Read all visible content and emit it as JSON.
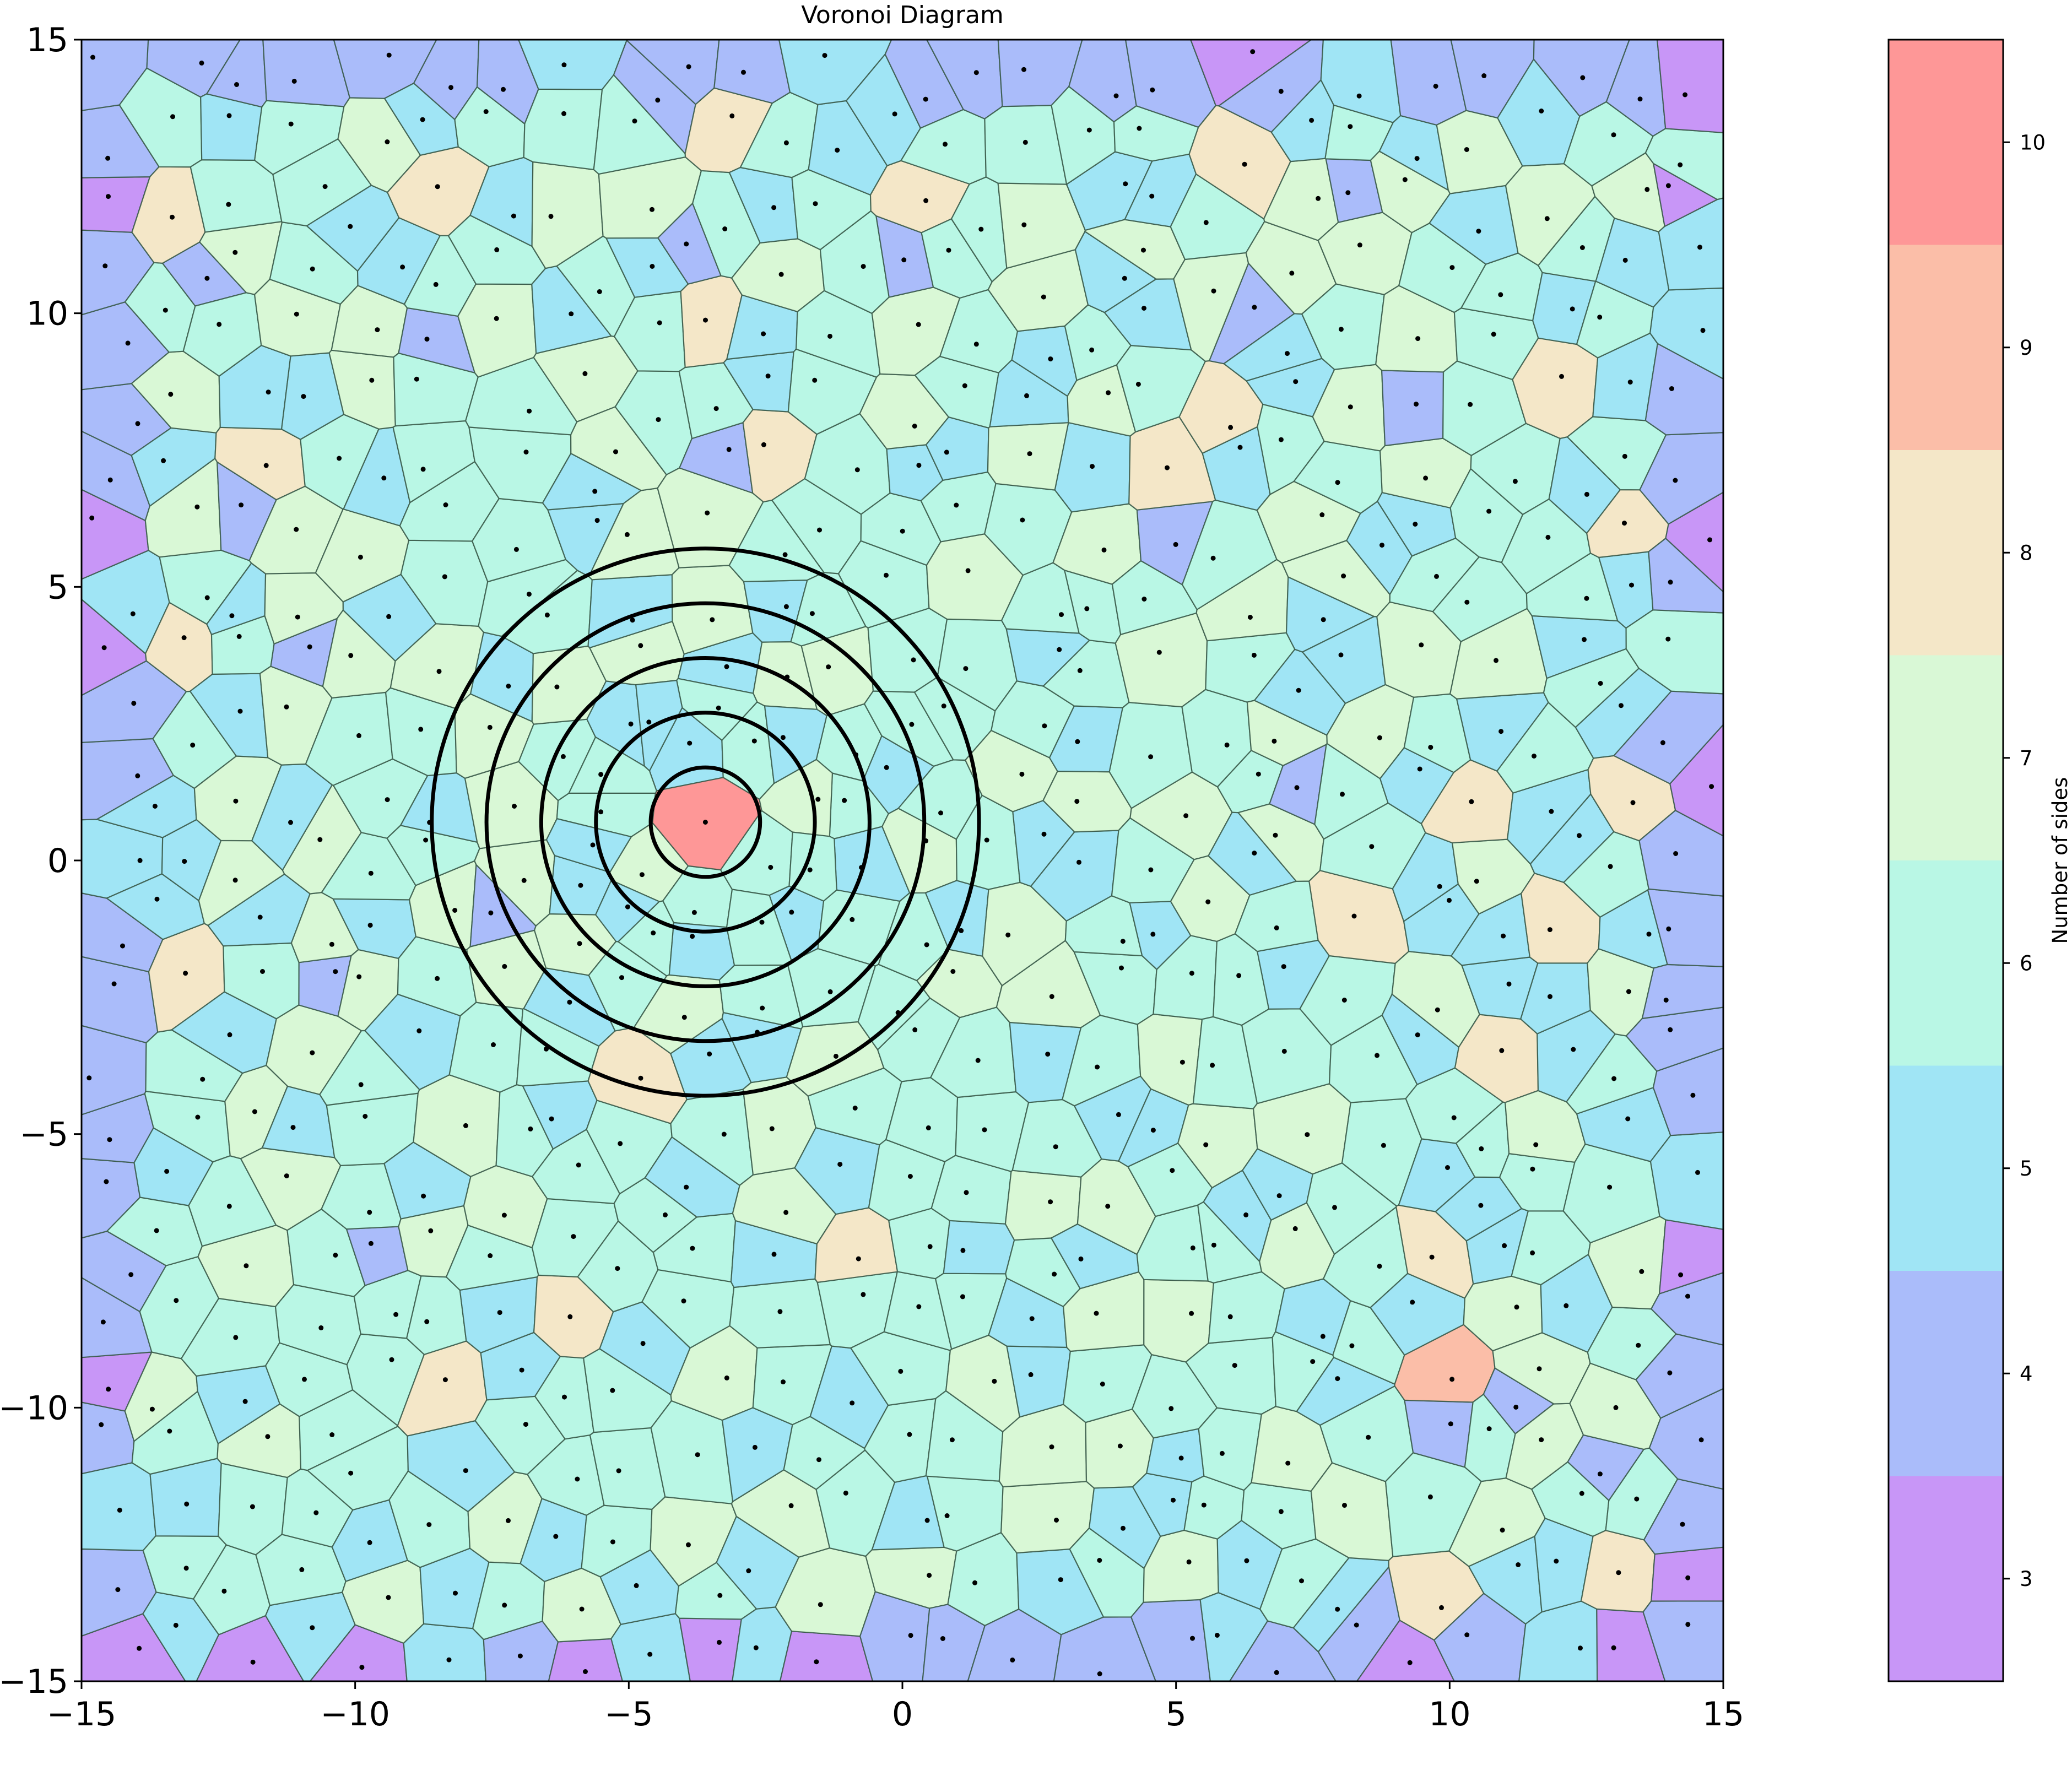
{
  "chart_data": {
    "type": "voronoi",
    "title": "Voronoi Diagram",
    "xlabel": "",
    "ylabel": "",
    "xlim": [
      -15,
      15
    ],
    "ylim": [
      -15,
      15
    ],
    "xticks": [
      -15,
      -10,
      -5,
      0,
      5,
      10,
      15
    ],
    "yticks": [
      -15,
      -10,
      -5,
      0,
      5,
      10,
      15
    ],
    "xtick_labels": [
      "−15",
      "−10",
      "−5",
      "0",
      "5",
      "10",
      "15"
    ],
    "ytick_labels": [
      "−15",
      "−10",
      "−5",
      "0",
      "5",
      "10",
      "15"
    ],
    "num_seed_points_approx": 600,
    "cell_edge_color": "#3a5a4a",
    "point_color": "#000000",
    "highlighted_cell": {
      "center": [
        -3.6,
        0.7
      ],
      "sides": 10
    },
    "concentric_circles": {
      "center": [
        -3.6,
        0.7
      ],
      "radii": [
        1.0,
        2.0,
        3.0,
        4.0,
        5.0
      ],
      "color": "#000000"
    },
    "colorbar": {
      "label": "Number of sides",
      "ticks": [
        3,
        4,
        5,
        6,
        7,
        8,
        9,
        10
      ],
      "levels": [
        {
          "sides": 3,
          "color": "#c896f7"
        },
        {
          "sides": 4,
          "color": "#aabcfa"
        },
        {
          "sides": 5,
          "color": "#a0e5f5"
        },
        {
          "sides": 6,
          "color": "#b9f7e5"
        },
        {
          "sides": 7,
          "color": "#d9f8d6"
        },
        {
          "sides": 8,
          "color": "#f4e7c8"
        },
        {
          "sides": 9,
          "color": "#fbbea8"
        },
        {
          "sides": 10,
          "color": "#fe9797"
        }
      ]
    }
  }
}
